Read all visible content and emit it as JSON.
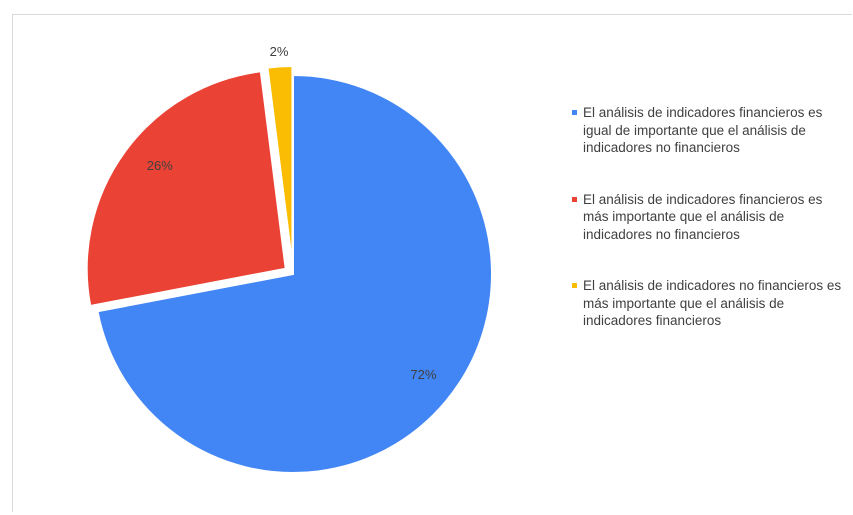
{
  "chart_data": {
    "type": "pie",
    "title": "",
    "slices": [
      {
        "label": "El análisis de indicadores financieros es igual de importante que el análisis de indicadores no financieros",
        "value": 72,
        "display": "72%",
        "color": "#4285F4"
      },
      {
        "label": "El análisis de indicadores financieros es más importante que el análisis de indicadores no financieros",
        "value": 26,
        "display": "26%",
        "color": "#EA4335"
      },
      {
        "label": "El análisis de indicadores no financieros es más importante que el análisis de indicadores financieros",
        "value": 2,
        "display": "2%",
        "color": "#FBBC04"
      }
    ],
    "start": "12 o'clock",
    "direction": "clockwise",
    "exploded": true,
    "legend_position": "right"
  }
}
